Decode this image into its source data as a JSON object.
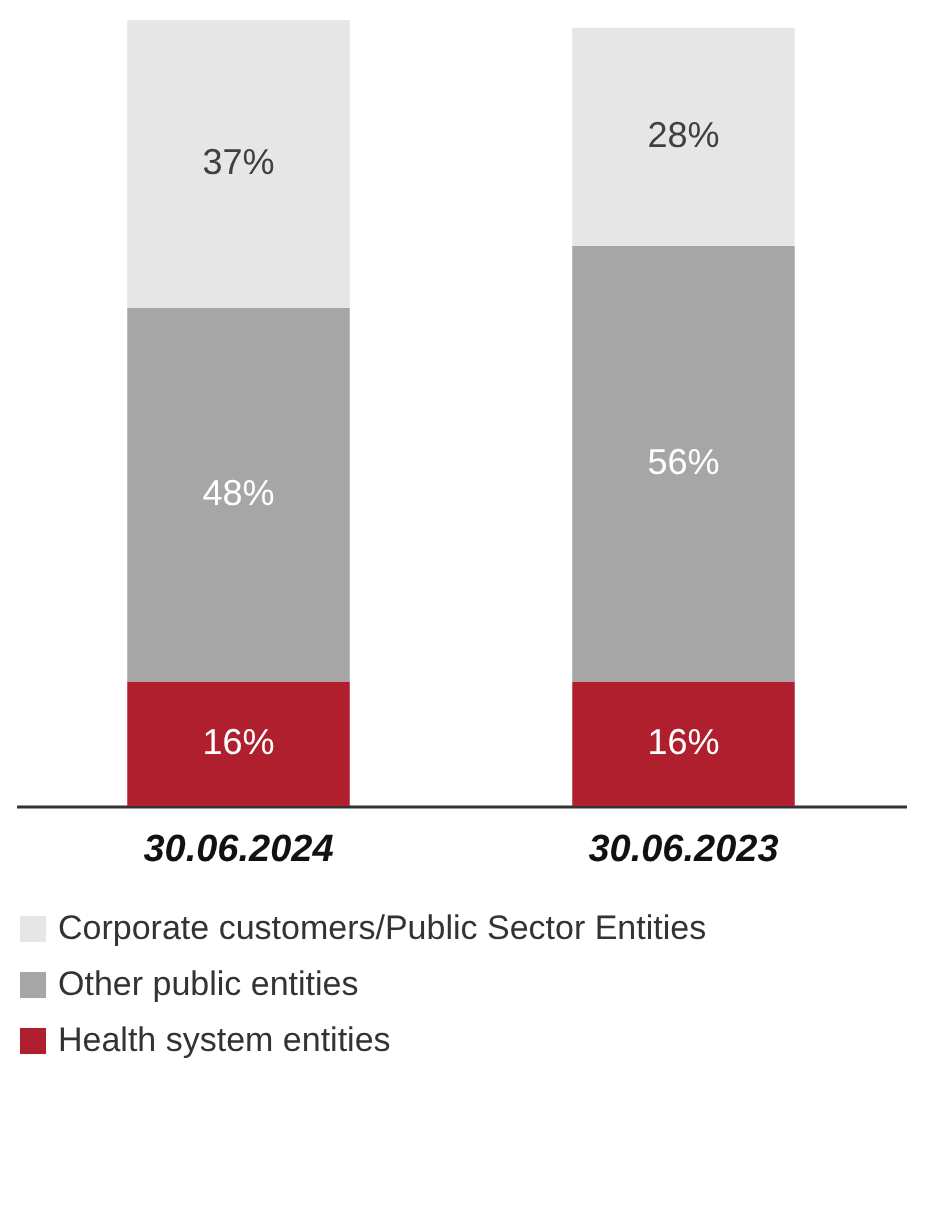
{
  "chart_data": {
    "type": "bar",
    "stacked": true,
    "legend": "bottom",
    "categories": [
      "30.06.2024",
      "30.06.2023"
    ],
    "series": [
      {
        "name": "Health system entities",
        "color": "#b01f2e",
        "values": [
          16,
          16
        ],
        "value_labels": [
          "16%",
          "16%"
        ]
      },
      {
        "name": "Other public entities",
        "color": "#a6a6a6",
        "values": [
          48,
          56
        ],
        "value_labels": [
          "48%",
          "56%"
        ]
      },
      {
        "name": "Corporate customers/Public Sector Entities",
        "color": "#e6e6e6",
        "values": [
          37,
          28
        ],
        "value_labels": [
          "37%",
          "28%"
        ]
      }
    ]
  }
}
